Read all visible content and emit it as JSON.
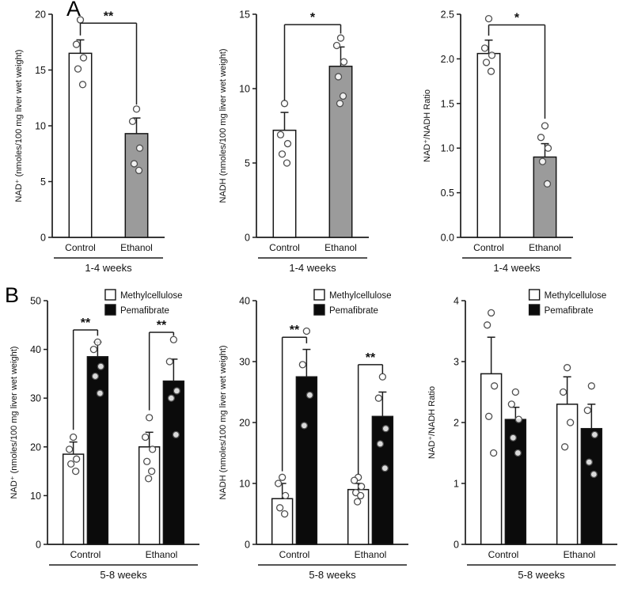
{
  "panels": [
    {
      "label": "A"
    },
    {
      "label": "B"
    }
  ],
  "colors": {
    "bar_white": "#ffffff",
    "bar_gray": "#9b9b9b",
    "bar_black": "#0b0b0b",
    "axis": "#1c1c1c"
  },
  "chart_data": [
    {
      "type": "bar",
      "panel": "A",
      "ylabel": "NAD⁺ (nmoles/100 mg liver wet weight)",
      "ylim": [
        0,
        20
      ],
      "yticks": [
        "0",
        "5",
        "10",
        "15",
        "20"
      ],
      "categories": [
        "Control",
        "Ethanol"
      ],
      "group_label": "1-4 weeks",
      "legend": false,
      "series": [
        {
          "name": "",
          "colors": [
            "#ffffff",
            "#9b9b9b"
          ],
          "values": [
            16.5,
            9.3
          ],
          "errors": [
            1.2,
            1.4
          ],
          "points": [
            [
              19.5,
              17.3,
              16.1,
              15.1,
              13.7
            ],
            [
              11.5,
              10.4,
              8.0,
              6.6,
              6.0
            ]
          ]
        }
      ],
      "significance": [
        {
          "x1": 0,
          "x2": 1,
          "y": 19.2,
          "y1": 18.1,
          "y2": 11.9,
          "label": "**"
        }
      ]
    },
    {
      "type": "bar",
      "panel": "A",
      "ylabel": "NADH (nmoles/100 mg liver wet weight)",
      "ylim": [
        0,
        15
      ],
      "yticks": [
        "0",
        "5",
        "10",
        "15"
      ],
      "categories": [
        "Control",
        "Ethanol"
      ],
      "group_label": "1-4 weeks",
      "legend": false,
      "series": [
        {
          "name": "",
          "colors": [
            "#ffffff",
            "#9b9b9b"
          ],
          "values": [
            7.2,
            11.5
          ],
          "errors": [
            1.2,
            1.3
          ],
          "points": [
            [
              9.0,
              6.9,
              6.3,
              5.6,
              5.0
            ],
            [
              13.4,
              12.9,
              11.8,
              10.8,
              9.5,
              9.0
            ]
          ]
        }
      ],
      "significance": [
        {
          "x1": 0,
          "x2": 1,
          "y": 14.3,
          "y1": 9.2,
          "y2": 13.7,
          "label": "*"
        }
      ]
    },
    {
      "type": "bar",
      "panel": "A",
      "ylabel": "NAD⁺/NADH Ratio",
      "ylim": [
        0,
        2.5
      ],
      "yticks": [
        "0.0",
        "0.5",
        "1.0",
        "1.5",
        "2.0",
        "2.5"
      ],
      "categories": [
        "Control",
        "Ethanol"
      ],
      "group_label": "1-4 weeks",
      "legend": false,
      "series": [
        {
          "name": "",
          "colors": [
            "#ffffff",
            "#9b9b9b"
          ],
          "values": [
            2.06,
            0.9
          ],
          "errors": [
            0.15,
            0.15
          ],
          "points": [
            [
              2.45,
              2.12,
              2.04,
              1.96,
              1.86
            ],
            [
              1.25,
              1.12,
              1.0,
              0.85,
              0.6
            ]
          ]
        }
      ],
      "significance": [
        {
          "x1": 0,
          "x2": 1,
          "y": 2.38,
          "y1": 2.26,
          "y2": 1.33,
          "label": "*"
        }
      ]
    },
    {
      "type": "bar",
      "panel": "B",
      "ylabel": "NAD⁺ (nmoles/100 mg liver wet weight)",
      "ylim": [
        0,
        50
      ],
      "yticks": [
        "0",
        "10",
        "20",
        "30",
        "40",
        "50"
      ],
      "categories": [
        "Control",
        "Ethanol"
      ],
      "group_label": "5-8 weeks",
      "legend": true,
      "legend_x": 0.38,
      "series": [
        {
          "name": "Methylcellulose",
          "color": "#ffffff",
          "values": [
            18.5,
            20.0
          ],
          "errors": [
            2.5,
            3.0
          ],
          "points": [
            [
              22,
              19.5,
              17.5,
              16.5,
              15
            ],
            [
              26,
              22,
              19.5,
              17,
              15,
              13.5
            ]
          ]
        },
        {
          "name": "Pemafibrate",
          "color": "#0b0b0b",
          "values": [
            38.5,
            33.5
          ],
          "errors": [
            3.0,
            4.5
          ],
          "points": [
            [
              41.5,
              40,
              36.5,
              34.5,
              31
            ],
            [
              42,
              37.5,
              31.5,
              30,
              22.5
            ]
          ]
        }
      ],
      "significance": [
        {
          "x1": 0,
          "s1": 0,
          "x2": 0,
          "s2": 1,
          "y": 44,
          "y1": 23.5,
          "y2": 42.8,
          "label": "**"
        },
        {
          "x1": 1,
          "s1": 0,
          "x2": 1,
          "s2": 1,
          "y": 43.5,
          "y1": 27.5,
          "y2": 42.8,
          "label": "**"
        }
      ]
    },
    {
      "type": "bar",
      "panel": "B",
      "ylabel": "NADH (nmoles/100 mg liver wet weight)",
      "ylim": [
        0,
        40
      ],
      "yticks": [
        "0",
        "10",
        "20",
        "30",
        "40"
      ],
      "categories": [
        "Control",
        "Ethanol"
      ],
      "group_label": "5-8 weeks",
      "legend": true,
      "legend_x": 0.38,
      "series": [
        {
          "name": "Methylcellulose",
          "color": "#ffffff",
          "values": [
            7.5,
            9.0
          ],
          "errors": [
            2.5,
            1.0
          ],
          "points": [
            [
              11,
              10,
              8,
              6,
              5
            ],
            [
              11,
              10.5,
              9.5,
              8.5,
              8,
              7
            ]
          ]
        },
        {
          "name": "Pemafibrate",
          "color": "#0b0b0b",
          "values": [
            27.5,
            21.0
          ],
          "errors": [
            4.5,
            4.0
          ],
          "points": [
            [
              35,
              29.5,
              24.5,
              19.5
            ],
            [
              27.5,
              24,
              19,
              16.5,
              12.5
            ]
          ]
        }
      ],
      "significance": [
        {
          "x1": 0,
          "s1": 0,
          "x2": 0,
          "s2": 1,
          "y": 34,
          "y1": 12,
          "y2": 33,
          "label": "**"
        },
        {
          "x1": 1,
          "s1": 0,
          "x2": 1,
          "s2": 1,
          "y": 29.5,
          "y1": 11.5,
          "y2": 28,
          "label": "**"
        }
      ]
    },
    {
      "type": "bar",
      "panel": "B",
      "ylabel": "NAD⁺/NADH Ratio",
      "ylim": [
        0,
        4
      ],
      "yticks": [
        "0",
        "1",
        "2",
        "3",
        "4"
      ],
      "categories": [
        "Control",
        "Ethanol"
      ],
      "group_label": "5-8 weeks",
      "legend": true,
      "legend_x": 0.42,
      "series": [
        {
          "name": "Methylcellulose",
          "color": "#ffffff",
          "values": [
            2.8,
            2.3
          ],
          "errors": [
            0.6,
            0.45
          ],
          "points": [
            [
              3.8,
              3.6,
              2.6,
              2.1,
              1.5
            ],
            [
              2.9,
              2.5,
              2.0,
              1.6
            ]
          ]
        },
        {
          "name": "Pemafibrate",
          "color": "#0b0b0b",
          "values": [
            2.05,
            1.9
          ],
          "errors": [
            0.2,
            0.4
          ],
          "points": [
            [
              2.5,
              2.3,
              2.05,
              1.75,
              1.5
            ],
            [
              2.6,
              2.2,
              1.8,
              1.35,
              1.15
            ]
          ]
        }
      ],
      "significance": []
    }
  ]
}
